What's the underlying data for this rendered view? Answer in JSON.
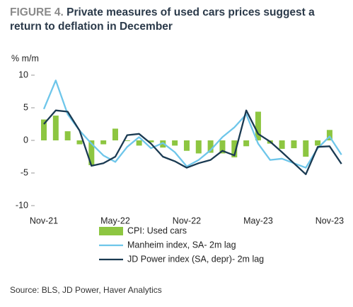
{
  "chart_data": {
    "type": "combo",
    "title_prefix": "FIGURE 4.",
    "title": "Private measures of used cars prices suggest a return to deflation in December",
    "y_label": "% m/m",
    "source": "Source: BLS, JD Power, Haver Analytics",
    "categories": [
      "Nov-21",
      null,
      null,
      null,
      null,
      null,
      "May-22",
      null,
      null,
      null,
      null,
      null,
      "Nov-22",
      null,
      null,
      null,
      null,
      null,
      "May-23",
      null,
      null,
      null,
      null,
      null,
      "Nov-23",
      null
    ],
    "ylim": [
      -10,
      10
    ],
    "yticks": [
      10,
      5,
      0,
      -5,
      -10
    ],
    "grid": false,
    "series": [
      {
        "name": "CPI: Used cars",
        "type": "bar",
        "color": "#8dc641",
        "values": [
          3.2,
          3.8,
          1.4,
          -0.6,
          -3.8,
          -0.6,
          1.8,
          -0.1,
          -0.8,
          -0.3,
          -1.1,
          -0.8,
          -1.6,
          -2.0,
          -1.9,
          -2.0,
          -2.6,
          -0.9,
          4.4,
          -0.5,
          -1.3,
          -1.2,
          -2.5,
          -0.8,
          1.6,
          null
        ]
      },
      {
        "name": "Manheim index, SA- 2m lag",
        "type": "line",
        "color": "#6ec6ea",
        "values": [
          4.8,
          9.2,
          4.0,
          1.5,
          -0.5,
          -2.3,
          -3.3,
          -1.0,
          0.5,
          -1.2,
          -0.4,
          -1.8,
          -4.0,
          -3.0,
          -1.5,
          0.5,
          2.0,
          4.0,
          -0.5,
          -3.0,
          -2.8,
          -3.5,
          -4.2,
          -1.2,
          0.6,
          -2.2
        ]
      },
      {
        "name": "JD Power index (SA, depr)- 2m lag",
        "type": "line",
        "color": "#1a3a52",
        "values": [
          2.5,
          4.6,
          4.4,
          1.5,
          -3.9,
          -3.5,
          -2.5,
          0.8,
          1.0,
          -0.5,
          -2.5,
          -3.2,
          -4.2,
          -3.5,
          -3.0,
          -1.6,
          -2.3,
          4.6,
          1.0,
          -0.2,
          -1.8,
          -3.5,
          -5.2,
          -1.0,
          -0.9,
          -3.6
        ]
      }
    ]
  }
}
